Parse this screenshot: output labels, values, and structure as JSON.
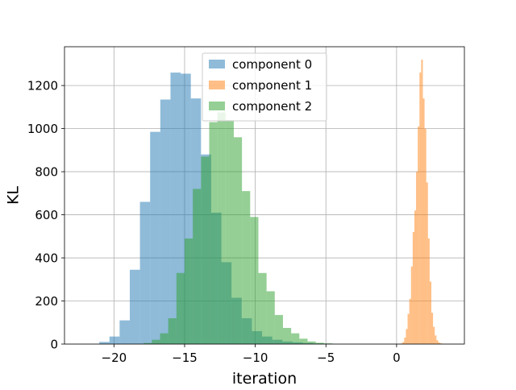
{
  "chart_data": {
    "type": "bar",
    "xlabel": "iteration",
    "ylabel": "KL",
    "xlim": [
      -23.5,
      4.8
    ],
    "ylim": [
      0,
      1380
    ],
    "xticks": [
      -20,
      -15,
      -10,
      -5,
      0
    ],
    "yticks": [
      0,
      200,
      400,
      600,
      800,
      1000,
      1200
    ],
    "grid": true,
    "legend_position": "top-center",
    "series": [
      {
        "name": "component 0",
        "color": "#1f77b4",
        "alpha": 0.5,
        "bin_width": 0.72,
        "bins_start": [
          -21.04,
          -20.32,
          -19.6,
          -18.88,
          -18.16,
          -17.44,
          -16.72,
          -16.0,
          -15.28,
          -14.56,
          -13.84,
          -13.12,
          -12.4,
          -11.68,
          -10.96,
          -10.24,
          -9.52,
          -8.8,
          -8.08,
          -7.36,
          -6.64,
          -5.92,
          -5.2
        ],
        "counts": [
          10,
          35,
          110,
          345,
          660,
          985,
          1135,
          1260,
          1255,
          1140,
          880,
          610,
          380,
          215,
          120,
          60,
          35,
          20,
          12,
          8,
          5,
          3,
          2
        ]
      },
      {
        "name": "component 1",
        "color": "#ff7f0e",
        "alpha": 0.5,
        "bin_width": 0.12,
        "bins_start": [
          0.3,
          0.42,
          0.54,
          0.66,
          0.78,
          0.9,
          1.02,
          1.14,
          1.26,
          1.38,
          1.5,
          1.62,
          1.74,
          1.86,
          1.98,
          2.1,
          2.22,
          2.34,
          2.46,
          2.58,
          2.7,
          2.82,
          2.94,
          3.06,
          3.18,
          3.3
        ],
        "counts": [
          3,
          10,
          30,
          70,
          140,
          210,
          360,
          520,
          620,
          800,
          1010,
          1260,
          1320,
          1140,
          1000,
          750,
          490,
          290,
          145,
          80,
          40,
          18,
          8,
          4,
          2,
          1
        ]
      },
      {
        "name": "component 2",
        "color": "#2ca02c",
        "alpha": 0.5,
        "bin_width": 0.58,
        "bins_start": [
          -17.9,
          -17.32,
          -16.74,
          -16.16,
          -15.58,
          -15.0,
          -14.42,
          -13.84,
          -13.26,
          -12.68,
          -12.1,
          -11.52,
          -10.94,
          -10.36,
          -9.78,
          -9.2,
          -8.62,
          -8.04,
          -7.46,
          -6.88,
          -6.3,
          -5.72,
          -5.14
        ],
        "counts": [
          5,
          20,
          50,
          120,
          330,
          490,
          720,
          870,
          1030,
          1075,
          1040,
          960,
          710,
          590,
          330,
          245,
          135,
          75,
          50,
          25,
          12,
          6,
          3
        ]
      }
    ]
  }
}
